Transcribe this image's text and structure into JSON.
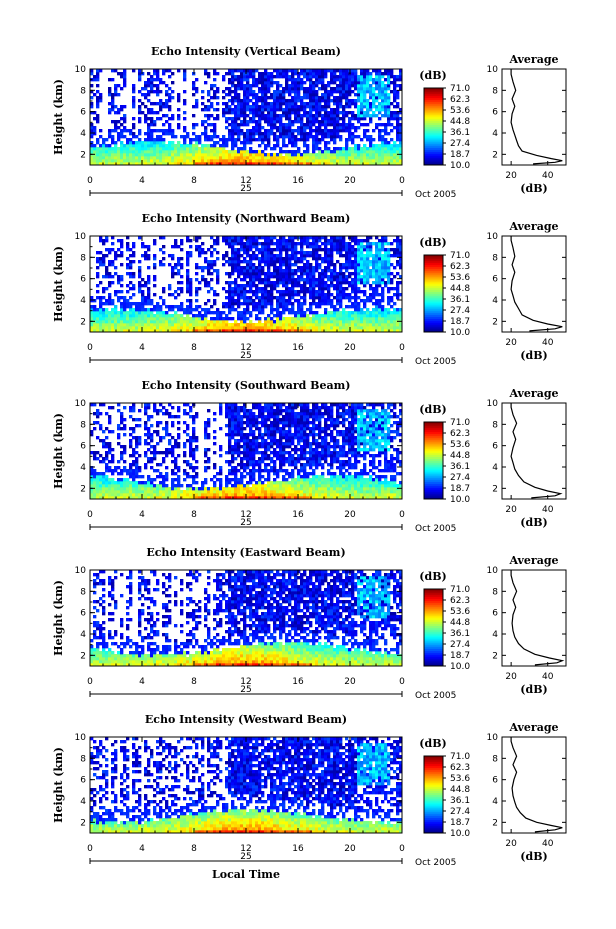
{
  "figure": {
    "xlabel": "Local Time",
    "date_label": "25",
    "month_label": "Oct 2005"
  },
  "chart_data": [
    {
      "type": "heatmap",
      "title": "Echo Intensity (Vertical Beam)",
      "ylabel": "Height (km)",
      "xlabel": "",
      "xticks": [
        "0",
        "4",
        "8",
        "12",
        "16",
        "20",
        "0"
      ],
      "xlim": [
        0,
        24
      ],
      "yticks": [
        "2",
        "4",
        "6",
        "8",
        "10"
      ],
      "ylim": [
        1,
        10
      ],
      "colorbar_label": "(dB)",
      "colorbar_ticks": [
        "71.0",
        "62.3",
        "53.6",
        "44.8",
        "36.1",
        "27.4",
        "18.7",
        "10.0"
      ],
      "colorbar_range": [
        10.0,
        71.0
      ],
      "average_profile": {
        "title": "Average",
        "xlabel": "(dB)",
        "xticks": [
          "20",
          "40"
        ],
        "yticks": [
          "2",
          "4",
          "6",
          "8",
          "10"
        ],
        "points": [
          [
            32,
            1.1
          ],
          [
            44,
            1.25
          ],
          [
            48,
            1.4
          ],
          [
            42,
            1.6
          ],
          [
            34,
            1.9
          ],
          [
            26,
            2.3
          ],
          [
            24,
            2.8
          ],
          [
            23,
            3.3
          ],
          [
            22,
            3.8
          ],
          [
            21,
            4.3
          ],
          [
            20,
            5
          ],
          [
            20.5,
            5.8
          ],
          [
            22,
            6.5
          ],
          [
            20.5,
            7.2
          ],
          [
            22.5,
            8
          ],
          [
            21,
            8.8
          ],
          [
            20,
            9.5
          ],
          [
            20,
            10
          ]
        ]
      }
    },
    {
      "type": "heatmap",
      "title": "Echo Intensity (Northward Beam)",
      "ylabel": "Height (km)",
      "xlabel": "",
      "xticks": [
        "0",
        "4",
        "8",
        "12",
        "16",
        "20",
        "0"
      ],
      "xlim": [
        0,
        24
      ],
      "yticks": [
        "2",
        "4",
        "6",
        "8",
        "10"
      ],
      "ylim": [
        1,
        10
      ],
      "colorbar_label": "(dB)",
      "colorbar_ticks": [
        "71.0",
        "62.3",
        "53.6",
        "44.8",
        "36.1",
        "27.4",
        "18.7",
        "10.0"
      ],
      "colorbar_range": [
        10.0,
        71.0
      ],
      "average_profile": {
        "title": "Average",
        "xlabel": "(dB)",
        "xticks": [
          "20",
          "40"
        ],
        "yticks": [
          "2",
          "4",
          "6",
          "8",
          "10"
        ],
        "points": [
          [
            30,
            1.1
          ],
          [
            44,
            1.3
          ],
          [
            48,
            1.5
          ],
          [
            40,
            1.75
          ],
          [
            32,
            2.1
          ],
          [
            26,
            2.6
          ],
          [
            24,
            3.2
          ],
          [
            22,
            3.8
          ],
          [
            21,
            4.4
          ],
          [
            20,
            5
          ],
          [
            20.5,
            5.8
          ],
          [
            22,
            6.6
          ],
          [
            20.5,
            7.3
          ],
          [
            22,
            8.1
          ],
          [
            21,
            8.9
          ],
          [
            20,
            9.6
          ],
          [
            20,
            10
          ]
        ]
      }
    },
    {
      "type": "heatmap",
      "title": "Echo Intensity (Southward Beam)",
      "ylabel": "Height (km)",
      "xlabel": "",
      "xticks": [
        "0",
        "4",
        "8",
        "12",
        "16",
        "20",
        "0"
      ],
      "xlim": [
        0,
        24
      ],
      "yticks": [
        "2",
        "4",
        "6",
        "8",
        "10"
      ],
      "ylim": [
        1,
        10
      ],
      "colorbar_label": "(dB)",
      "colorbar_ticks": [
        "71.0",
        "62.3",
        "53.6",
        "44.8",
        "36.1",
        "27.4",
        "18.7",
        "10.0"
      ],
      "colorbar_range": [
        10.0,
        71.0
      ],
      "average_profile": {
        "title": "Average",
        "xlabel": "(dB)",
        "xticks": [
          "20",
          "40"
        ],
        "yticks": [
          "2",
          "4",
          "6",
          "8",
          "10"
        ],
        "points": [
          [
            31,
            1.1
          ],
          [
            44,
            1.3
          ],
          [
            47,
            1.5
          ],
          [
            40,
            1.75
          ],
          [
            33,
            2.1
          ],
          [
            27,
            2.6
          ],
          [
            24,
            3.2
          ],
          [
            22,
            3.8
          ],
          [
            21,
            4.4
          ],
          [
            20,
            5
          ],
          [
            21,
            5.8
          ],
          [
            22.5,
            6.6
          ],
          [
            21,
            7.3
          ],
          [
            23,
            8.1
          ],
          [
            21,
            8.9
          ],
          [
            20,
            9.6
          ],
          [
            20,
            10
          ]
        ]
      }
    },
    {
      "type": "heatmap",
      "title": "Echo Intensity (Eastward Beam)",
      "ylabel": "Height (km)",
      "xlabel": "",
      "xticks": [
        "0",
        "4",
        "8",
        "12",
        "16",
        "20",
        "0"
      ],
      "xlim": [
        0,
        24
      ],
      "yticks": [
        "2",
        "4",
        "6",
        "8",
        "10"
      ],
      "ylim": [
        1,
        10
      ],
      "colorbar_label": "(dB)",
      "colorbar_ticks": [
        "71.0",
        "62.3",
        "53.6",
        "44.8",
        "36.1",
        "27.4",
        "18.7",
        "10.0"
      ],
      "colorbar_range": [
        10.0,
        71.0
      ],
      "average_profile": {
        "title": "Average",
        "xlabel": "(dB)",
        "xticks": [
          "20",
          "40"
        ],
        "yticks": [
          "2",
          "4",
          "6",
          "8",
          "10"
        ],
        "points": [
          [
            33,
            1.1
          ],
          [
            45,
            1.3
          ],
          [
            48,
            1.5
          ],
          [
            41,
            1.75
          ],
          [
            33,
            2.1
          ],
          [
            27,
            2.6
          ],
          [
            24,
            3.1
          ],
          [
            22,
            3.7
          ],
          [
            21,
            4.3
          ],
          [
            20.5,
            5
          ],
          [
            21,
            5.8
          ],
          [
            22.5,
            6.5
          ],
          [
            21,
            7.2
          ],
          [
            23,
            8
          ],
          [
            21,
            8.8
          ],
          [
            20,
            9.5
          ],
          [
            20,
            10
          ]
        ]
      }
    },
    {
      "type": "heatmap",
      "title": "Echo Intensity (Westward Beam)",
      "ylabel": "Height (km)",
      "xlabel": "",
      "xticks": [
        "0",
        "4",
        "8",
        "12",
        "16",
        "20",
        "0"
      ],
      "xlim": [
        0,
        24
      ],
      "yticks": [
        "2",
        "4",
        "6",
        "8",
        "10"
      ],
      "ylim": [
        1,
        10
      ],
      "colorbar_label": "(dB)",
      "colorbar_ticks": [
        "71.0",
        "62.3",
        "53.6",
        "44.8",
        "36.1",
        "27.4",
        "18.7",
        "10.0"
      ],
      "colorbar_range": [
        10.0,
        71.0
      ],
      "average_profile": {
        "title": "Average",
        "xlabel": "(dB)",
        "xticks": [
          "20",
          "40"
        ],
        "yticks": [
          "2",
          "4",
          "6",
          "8",
          "10"
        ],
        "points": [
          [
            33,
            1.1
          ],
          [
            44,
            1.3
          ],
          [
            48,
            1.5
          ],
          [
            42,
            1.7
          ],
          [
            34,
            2.0
          ],
          [
            28,
            2.4
          ],
          [
            25,
            2.9
          ],
          [
            23,
            3.4
          ],
          [
            22,
            3.9
          ],
          [
            21,
            4.5
          ],
          [
            20.5,
            5.2
          ],
          [
            21.5,
            6
          ],
          [
            23,
            6.7
          ],
          [
            21,
            7.4
          ],
          [
            23,
            8.2
          ],
          [
            21,
            9
          ],
          [
            20,
            9.6
          ],
          [
            20,
            10
          ]
        ]
      }
    }
  ]
}
